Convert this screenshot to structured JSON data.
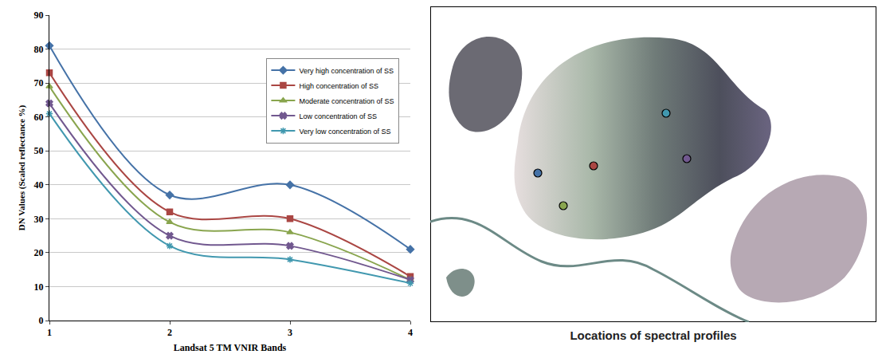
{
  "chart_data": {
    "type": "line",
    "x_label": "Landsat 5 TM VNIR Bands",
    "y_label": "DN Values (Scaled reflectance %)",
    "x": [
      1,
      2,
      3,
      4
    ],
    "xlim": [
      1,
      4
    ],
    "xticks": [
      1,
      2,
      3,
      4
    ],
    "ylim": [
      0,
      90
    ],
    "yticks": [
      0,
      10,
      20,
      30,
      40,
      50,
      60,
      70,
      80,
      90
    ],
    "grid": true,
    "legend": "upper right",
    "line_style": "smooth",
    "series": [
      {
        "name": "Very high concentration of SS",
        "color": "#4572A7",
        "marker": "diamond",
        "values": [
          81,
          37,
          40,
          21
        ]
      },
      {
        "name": "High concentration of SS",
        "color": "#AA4643",
        "marker": "square",
        "values": [
          73,
          32,
          30,
          13
        ]
      },
      {
        "name": "Moderate concentration of SS",
        "color": "#89A54E",
        "marker": "triangle",
        "values": [
          69,
          29,
          26,
          12
        ]
      },
      {
        "name": "Low concentration of SS",
        "color": "#71588F",
        "marker": "x",
        "values": [
          64,
          25,
          22,
          12
        ]
      },
      {
        "name": "Very low concentration of SS",
        "color": "#4198AF",
        "marker": "star",
        "values": [
          61,
          22,
          18,
          11
        ]
      }
    ]
  },
  "map_panel": {
    "caption": "Locations of spectral profiles"
  }
}
